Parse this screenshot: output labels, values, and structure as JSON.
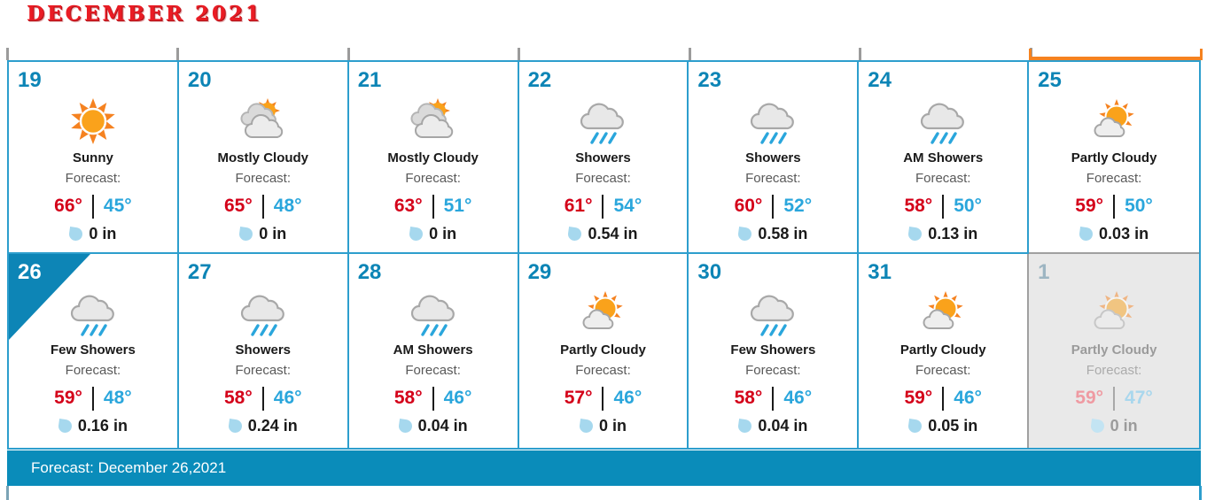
{
  "title": "DECEMBER 2021",
  "footer": {
    "label": "Forecast: December 26,2021"
  },
  "colors": {
    "accent_blue": "#0d85b6",
    "border_blue": "#2d9ecd",
    "footer_blue": "#0a8cba",
    "high_temp_red": "#d40019",
    "low_temp_blue": "#2aa6dc",
    "selection_orange": "#f58220",
    "muted_cell_gray": "#e9e9e9",
    "drop_blue": "#a6d8ee",
    "title_red": "#ea1c24"
  },
  "days": [
    {
      "day": "19",
      "icon": "sunny",
      "condition": "Sunny",
      "forecast_label": "Forecast:",
      "high": "66°",
      "low": "45°",
      "precip": "0 in"
    },
    {
      "day": "20",
      "icon": "mostly-cloudy",
      "condition": "Mostly Cloudy",
      "forecast_label": "Forecast:",
      "high": "65°",
      "low": "48°",
      "precip": "0 in"
    },
    {
      "day": "21",
      "icon": "mostly-cloudy",
      "condition": "Mostly Cloudy",
      "forecast_label": "Forecast:",
      "high": "63°",
      "low": "51°",
      "precip": "0 in"
    },
    {
      "day": "22",
      "icon": "showers",
      "condition": "Showers",
      "forecast_label": "Forecast:",
      "high": "61°",
      "low": "54°",
      "precip": "0.54 in"
    },
    {
      "day": "23",
      "icon": "showers",
      "condition": "Showers",
      "forecast_label": "Forecast:",
      "high": "60°",
      "low": "52°",
      "precip": "0.58 in"
    },
    {
      "day": "24",
      "icon": "showers",
      "condition": "AM Showers",
      "forecast_label": "Forecast:",
      "high": "58°",
      "low": "50°",
      "precip": "0.13 in"
    },
    {
      "day": "25",
      "icon": "partly-cloudy",
      "condition": "Partly Cloudy",
      "forecast_label": "Forecast:",
      "high": "59°",
      "low": "50°",
      "precip": "0.03 in",
      "selected_column": true
    },
    {
      "day": "26",
      "icon": "showers",
      "condition": "Few Showers",
      "forecast_label": "Forecast:",
      "high": "59°",
      "low": "48°",
      "precip": "0.16 in",
      "selected_day": true
    },
    {
      "day": "27",
      "icon": "showers",
      "condition": "Showers",
      "forecast_label": "Forecast:",
      "high": "58°",
      "low": "46°",
      "precip": "0.24 in"
    },
    {
      "day": "28",
      "icon": "showers",
      "condition": "AM Showers",
      "forecast_label": "Forecast:",
      "high": "58°",
      "low": "46°",
      "precip": "0.04 in"
    },
    {
      "day": "29",
      "icon": "partly-cloudy",
      "condition": "Partly Cloudy",
      "forecast_label": "Forecast:",
      "high": "57°",
      "low": "46°",
      "precip": "0 in"
    },
    {
      "day": "30",
      "icon": "showers",
      "condition": "Few Showers",
      "forecast_label": "Forecast:",
      "high": "58°",
      "low": "46°",
      "precip": "0.04 in"
    },
    {
      "day": "31",
      "icon": "partly-cloudy",
      "condition": "Partly Cloudy",
      "forecast_label": "Forecast:",
      "high": "59°",
      "low": "46°",
      "precip": "0.05 in"
    },
    {
      "day": "1",
      "icon": "partly-cloudy",
      "condition": "Partly Cloudy",
      "forecast_label": "Forecast:",
      "high": "59°",
      "low": "47°",
      "precip": "0 in",
      "muted": true
    }
  ]
}
